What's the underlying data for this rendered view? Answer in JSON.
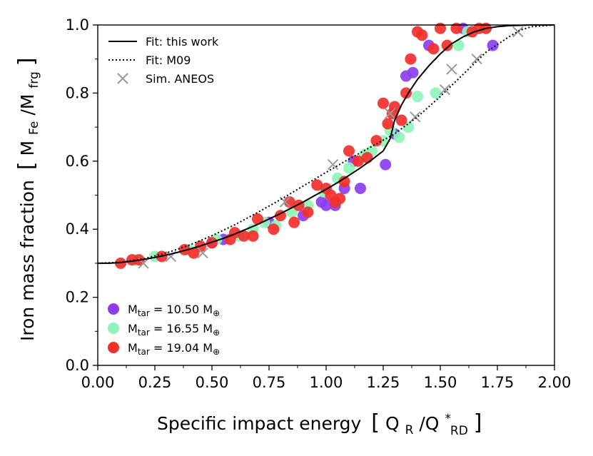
{
  "chart_data": {
    "type": "scatter",
    "xlabel": "Specific impact energy",
    "xlabel_unit": {
      "num": "Q",
      "num_sub": "R",
      "den": "Q",
      "den_sup": "*",
      "den_sub": "RD"
    },
    "ylabel": "Iron mass fraction",
    "ylabel_unit": {
      "num": "M",
      "num_sub": "Fe",
      "den": "M",
      "den_sub": "frg"
    },
    "xlim": [
      0.0,
      2.0
    ],
    "ylim": [
      0.0,
      1.0
    ],
    "xticks": [
      "0.00",
      "0.25",
      "0.50",
      "0.75",
      "1.00",
      "1.25",
      "1.50",
      "1.75",
      "2.00"
    ],
    "yticks": [
      "0.0",
      "0.2",
      "0.4",
      "0.6",
      "0.8",
      "1.0"
    ],
    "legend_lines": [
      {
        "label": "Fit: this work",
        "style": "solid"
      },
      {
        "label": "Fit: M09",
        "style": "dotted"
      },
      {
        "label": "Sim. ANEOS",
        "style": "cross"
      }
    ],
    "fits": [
      {
        "name": "Fit: this work",
        "color": "#000000",
        "x": [
          0.0,
          0.05,
          0.1,
          0.15,
          0.2,
          0.25,
          0.3,
          0.35,
          0.4,
          0.45,
          0.5,
          0.55,
          0.6,
          0.65,
          0.7,
          0.75,
          0.8,
          0.85,
          0.9,
          0.95,
          1.0,
          1.05,
          1.1,
          1.15,
          1.2,
          1.25,
          1.28,
          1.3,
          1.33,
          1.36,
          1.4,
          1.45,
          1.5,
          1.55,
          1.6,
          1.65,
          1.7,
          1.75,
          1.8,
          1.85,
          1.9,
          1.95,
          2.0
        ],
        "y": [
          0.3,
          0.3,
          0.302,
          0.306,
          0.311,
          0.317,
          0.324,
          0.332,
          0.341,
          0.351,
          0.362,
          0.373,
          0.386,
          0.4,
          0.414,
          0.43,
          0.446,
          0.463,
          0.48,
          0.499,
          0.517,
          0.537,
          0.558,
          0.58,
          0.604,
          0.63,
          0.665,
          0.72,
          0.765,
          0.8,
          0.84,
          0.88,
          0.915,
          0.945,
          0.965,
          0.98,
          0.99,
          0.995,
          0.998,
          0.999,
          1.0,
          1.0,
          1.0
        ]
      },
      {
        "name": "Fit: M09",
        "color": "#000000",
        "x": [
          0.0,
          0.1,
          0.2,
          0.3,
          0.4,
          0.5,
          0.6,
          0.7,
          0.8,
          0.9,
          1.0,
          1.1,
          1.2,
          1.3,
          1.4,
          1.5,
          1.6,
          1.7,
          1.8,
          1.85,
          1.9,
          2.0
        ],
        "y": [
          0.3,
          0.303,
          0.313,
          0.33,
          0.353,
          0.381,
          0.413,
          0.449,
          0.487,
          0.527,
          0.567,
          0.606,
          0.643,
          0.68,
          0.73,
          0.79,
          0.855,
          0.92,
          0.965,
          0.985,
          0.995,
          1.0
        ]
      }
    ],
    "series": [
      {
        "name": "Sim. ANEOS",
        "marker": "x",
        "color": "#999999",
        "x": [
          0.2,
          0.32,
          0.46,
          0.82,
          1.03,
          1.28,
          1.39,
          1.52,
          1.55,
          1.66,
          1.84
        ],
        "y": [
          0.3,
          0.32,
          0.33,
          0.48,
          0.59,
          0.74,
          0.73,
          0.81,
          0.87,
          0.9,
          0.98
        ]
      },
      {
        "name": "M_tar = 10.50 M_⊕",
        "marker": "o",
        "color": "#8b3ef0",
        "x": [
          0.5,
          0.55,
          0.75,
          0.9,
          0.98,
          1.0,
          1.04,
          1.08,
          1.12,
          1.15,
          1.26,
          1.3,
          1.35,
          1.38,
          1.45,
          1.6,
          1.73
        ],
        "y": [
          0.36,
          0.37,
          0.42,
          0.44,
          0.48,
          0.47,
          0.47,
          0.52,
          0.6,
          0.52,
          0.59,
          0.68,
          0.85,
          0.86,
          0.94,
          0.99,
          0.94
        ]
      },
      {
        "name": "M_tar = 16.55 M_⊕",
        "marker": "o",
        "color": "#8ef5b8",
        "x": [
          0.16,
          0.25,
          0.4,
          0.52,
          0.62,
          0.68,
          0.73,
          0.78,
          0.85,
          0.92,
          0.99,
          1.05,
          1.1,
          1.17,
          1.2,
          1.25,
          1.28,
          1.32,
          1.36,
          1.4,
          1.48,
          1.58,
          1.62,
          1.7
        ],
        "y": [
          0.31,
          0.32,
          0.34,
          0.37,
          0.38,
          0.4,
          0.42,
          0.41,
          0.45,
          0.47,
          0.51,
          0.55,
          0.58,
          0.62,
          0.63,
          0.66,
          0.69,
          0.67,
          0.7,
          0.79,
          0.8,
          0.94,
          0.98,
          0.99
        ]
      },
      {
        "name": "M_tar = 19.04 M_⊕",
        "marker": "o",
        "color": "#f2302c",
        "x": [
          0.1,
          0.15,
          0.18,
          0.28,
          0.38,
          0.42,
          0.45,
          0.5,
          0.58,
          0.6,
          0.64,
          0.68,
          0.7,
          0.77,
          0.8,
          0.84,
          0.86,
          0.88,
          0.92,
          0.96,
          1.0,
          1.02,
          1.04,
          1.06,
          1.08,
          1.1,
          1.14,
          1.18,
          1.22,
          1.25,
          1.27,
          1.29,
          1.3,
          1.33,
          1.35,
          1.37,
          1.4,
          1.42,
          1.47,
          1.5,
          1.53,
          1.57,
          1.64,
          1.67,
          1.7
        ],
        "y": [
          0.3,
          0.31,
          0.31,
          0.32,
          0.34,
          0.33,
          0.35,
          0.36,
          0.37,
          0.39,
          0.38,
          0.38,
          0.43,
          0.4,
          0.44,
          0.48,
          0.42,
          0.47,
          0.45,
          0.53,
          0.52,
          0.5,
          0.48,
          0.49,
          0.54,
          0.63,
          0.6,
          0.61,
          0.66,
          0.77,
          0.71,
          0.74,
          0.76,
          0.72,
          0.8,
          0.9,
          0.98,
          0.97,
          0.93,
          0.99,
          0.94,
          0.99,
          0.98,
          0.99,
          0.99
        ]
      }
    ],
    "legend_markers": [
      {
        "prefix": "M",
        "sub": "tar",
        "value": " = 10.50 M",
        "unit_sub": "⊕",
        "color": "#8b3ef0"
      },
      {
        "prefix": "M",
        "sub": "tar",
        "value": " = 16.55 M",
        "unit_sub": "⊕",
        "color": "#8ef5b8"
      },
      {
        "prefix": "M",
        "sub": "tar",
        "value": " = 19.04 M",
        "unit_sub": "⊕",
        "color": "#f2302c"
      }
    ]
  }
}
